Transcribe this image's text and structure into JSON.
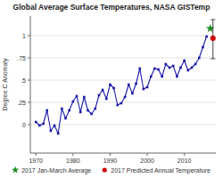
{
  "chart_data": {
    "type": "line",
    "title": "Global Average Surface Temperatures, NASA GISTemp",
    "y_label": "Degree C Anomaly",
    "xlim": [
      1968.5,
      2018.5
    ],
    "xticks": [
      1970,
      1980,
      1990,
      2000,
      2010
    ],
    "ylim": [
      -0.32,
      1.22
    ],
    "yticks": [
      0,
      {
        "value": 0.25,
        "label": ".25"
      },
      {
        "value": 0.5,
        "label": ".5"
      },
      {
        "value": 0.75,
        "label": ".75"
      },
      1
    ],
    "grid": true,
    "legend": "bottom",
    "series": [
      {
        "type": "line",
        "color": "#1a1aaa",
        "marker": "square",
        "x": [
          1970,
          1971,
          1972,
          1973,
          1974,
          1975,
          1976,
          1977,
          1978,
          1979,
          1980,
          1981,
          1982,
          1983,
          1984,
          1985,
          1986,
          1987,
          1988,
          1989,
          1990,
          1991,
          1992,
          1993,
          1994,
          1995,
          1996,
          1997,
          1998,
          1999,
          2000,
          2001,
          2002,
          2003,
          2004,
          2005,
          2006,
          2007,
          2008,
          2009,
          2010,
          2011,
          2012,
          2013,
          2014,
          2015,
          2016
        ],
        "values": [
          0.03,
          -0.01,
          0.01,
          0.16,
          -0.07,
          -0.01,
          -0.1,
          0.18,
          0.07,
          0.16,
          0.26,
          0.32,
          0.14,
          0.31,
          0.16,
          0.12,
          0.18,
          0.33,
          0.39,
          0.29,
          0.45,
          0.41,
          0.22,
          0.24,
          0.31,
          0.45,
          0.35,
          0.46,
          0.63,
          0.4,
          0.42,
          0.54,
          0.63,
          0.62,
          0.54,
          0.68,
          0.64,
          0.66,
          0.54,
          0.64,
          0.72,
          0.61,
          0.64,
          0.68,
          0.75,
          0.87,
          0.99
        ]
      },
      {
        "type": "scatter",
        "name": "2017 Jan-March Average",
        "color": "#228B22",
        "marker": "star",
        "x": [
          2017
        ],
        "values": [
          1.08
        ]
      },
      {
        "type": "scatter",
        "name": "2017 Predicted Annual Temperature",
        "color": "#cc0000",
        "marker": "circle",
        "x": [
          2017
        ],
        "values": [
          0.97
        ],
        "error_low": [
          0.74
        ],
        "error_high": [
          1.18
        ]
      }
    ]
  }
}
